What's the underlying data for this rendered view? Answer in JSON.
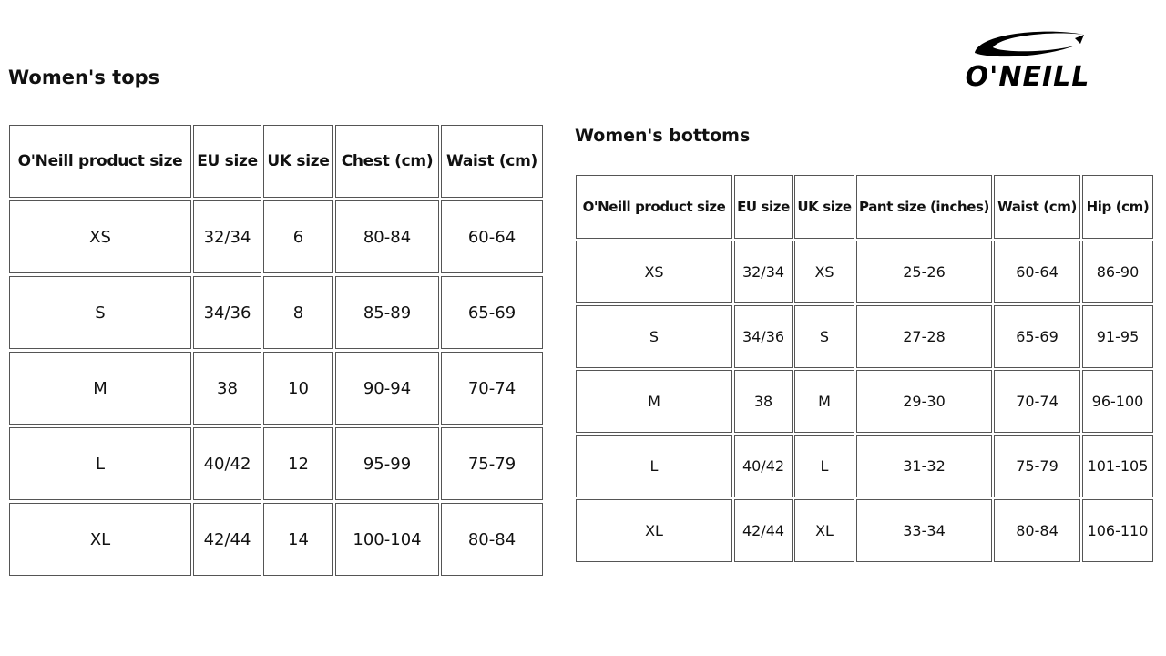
{
  "brand": {
    "logo_text": "O'NEILL"
  },
  "tops": {
    "title": "Women's tops",
    "headers": [
      "O'Neill product size",
      "EU size",
      "UK size",
      "Chest (cm)",
      "Waist (cm)"
    ],
    "rows": [
      [
        "XS",
        "32/34",
        "6",
        "80-84",
        "60-64"
      ],
      [
        "S",
        "34/36",
        "8",
        "85-89",
        "65-69"
      ],
      [
        "M",
        "38",
        "10",
        "90-94",
        "70-74"
      ],
      [
        "L",
        "40/42",
        "12",
        "95-99",
        "75-79"
      ],
      [
        "XL",
        "42/44",
        "14",
        "100-104",
        "80-84"
      ]
    ]
  },
  "bottoms": {
    "title": "Women's bottoms",
    "headers": [
      "O'Neill product size",
      "EU size",
      "UK size",
      "Pant size (inches)",
      "Waist (cm)",
      "Hip (cm)"
    ],
    "rows": [
      [
        "XS",
        "32/34",
        "XS",
        "25-26",
        "60-64",
        "86-90"
      ],
      [
        "S",
        "34/36",
        "S",
        "27-28",
        "65-69",
        "91-95"
      ],
      [
        "M",
        "38",
        "M",
        "29-30",
        "70-74",
        "96-100"
      ],
      [
        "L",
        "40/42",
        "L",
        "31-32",
        "75-79",
        "101-105"
      ],
      [
        "XL",
        "42/44",
        "XL",
        "33-34",
        "80-84",
        "106-110"
      ]
    ]
  }
}
